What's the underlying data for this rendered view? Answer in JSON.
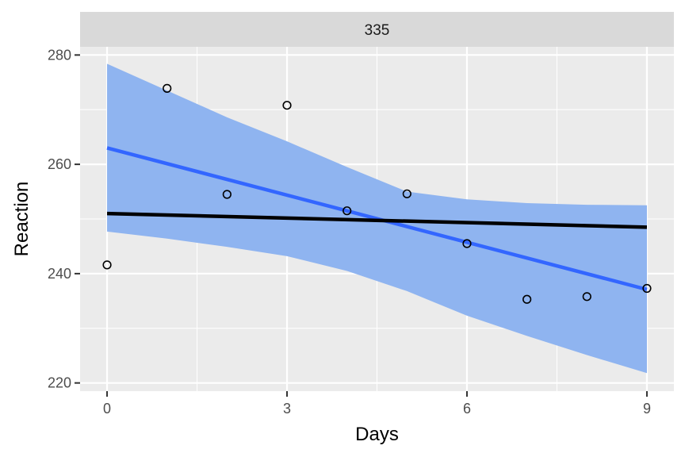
{
  "chart_data": {
    "type": "scatter",
    "facet_label": "335",
    "xlabel": "Days",
    "ylabel": "Reaction",
    "xlim": [
      -0.45,
      9.45
    ],
    "ylim": [
      218.5,
      281.5
    ],
    "x_ticks": [
      0,
      3,
      6,
      9
    ],
    "y_ticks": [
      220,
      240,
      260,
      280
    ],
    "x_minor": [
      1.5,
      4.5,
      7.5
    ],
    "y_minor": [
      230,
      250,
      270
    ],
    "grid": true,
    "points": {
      "x": [
        0,
        1,
        2,
        3,
        4,
        5,
        6,
        7,
        8,
        9
      ],
      "y": [
        241.6,
        273.9,
        254.5,
        270.8,
        251.5,
        254.6,
        245.5,
        235.3,
        235.8,
        237.3
      ]
    },
    "fits": [
      {
        "method": "linear regression",
        "color": "#3366ff",
        "fill": "#8fb4f0",
        "x": [
          0,
          9
        ],
        "y": [
          263.0,
          237.1
        ],
        "band_x": [
          0,
          1,
          2,
          3,
          4,
          5,
          6,
          7,
          8,
          9
        ],
        "band_lower": [
          247.7,
          246.4,
          244.9,
          243.2,
          240.5,
          236.8,
          232.3,
          228.6,
          225.1,
          221.8
        ],
        "band_upper": [
          278.4,
          273.5,
          268.6,
          264.2,
          259.5,
          255.0,
          253.6,
          252.9,
          252.6,
          252.5
        ]
      },
      {
        "method": "reference line",
        "color": "#000000",
        "x": [
          0,
          9
        ],
        "y": [
          251.0,
          248.5
        ]
      }
    ]
  }
}
